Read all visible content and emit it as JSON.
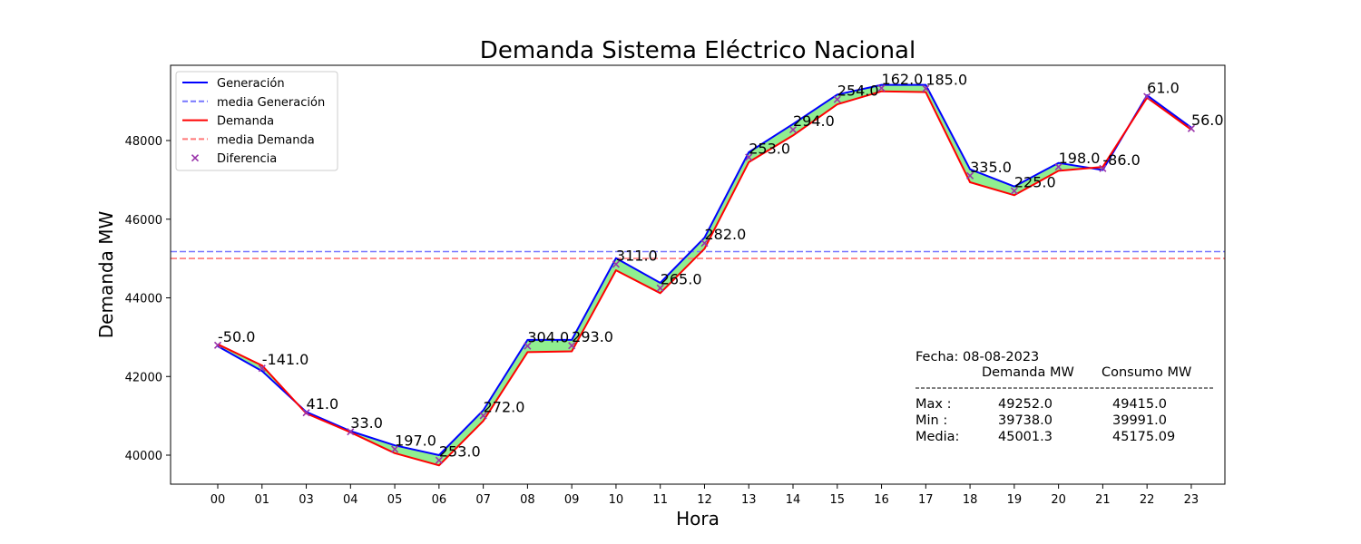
{
  "chart_data": {
    "type": "line",
    "title": "Demanda Sistema Eléctrico Nacional",
    "xlabel": "Hora",
    "ylabel": "Demanda MW",
    "categories": [
      "00",
      "01",
      "03",
      "04",
      "05",
      "06",
      "07",
      "08",
      "09",
      "10",
      "11",
      "12",
      "13",
      "14",
      "15",
      "16",
      "17",
      "18",
      "19",
      "20",
      "21",
      "22",
      "23"
    ],
    "ylim": [
      39300,
      49950
    ],
    "yticks": [
      40000,
      42000,
      44000,
      46000,
      48000
    ],
    "ytick_labels": [
      "40000",
      "42000",
      "44000",
      "46000",
      "48000"
    ],
    "grid": false,
    "legend_position": "top-left",
    "series": [
      {
        "name": "Generación",
        "color": "#0000ff",
        "values": [
          42770,
          42140,
          41100,
          40610,
          40250,
          40000,
          41140,
          42930,
          42930,
          45010,
          44380,
          45530,
          47700,
          48420,
          49170,
          49415,
          49415,
          47270,
          46830,
          47430,
          47250,
          49150,
          48330
        ]
      },
      {
        "name": "Demanda",
        "color": "#ff0000",
        "values": [
          42820,
          42280,
          41060,
          40580,
          40050,
          39740,
          40870,
          42620,
          42640,
          44700,
          44120,
          45250,
          47450,
          48130,
          48920,
          49252,
          49230,
          46940,
          46610,
          47230,
          47330,
          49090,
          48280
        ]
      },
      {
        "name": "Diferencia",
        "color": "#9933aa",
        "values": [
          -50.0,
          -141.0,
          41.0,
          33.0,
          197.0,
          253.0,
          272.0,
          304.0,
          293.0,
          311.0,
          265.0,
          282.0,
          253.0,
          294.0,
          254.0,
          162.0,
          185.0,
          335.0,
          225.0,
          198.0,
          -86.0,
          61.0,
          56.0
        ]
      }
    ],
    "point_labels": [
      "-50.0",
      "-141.0",
      "41.0",
      "33.0",
      "197.0",
      "253.0",
      "272.0",
      "304.0",
      "293.0",
      "311.0",
      "265.0",
      "282.0",
      "253.0",
      "294.0",
      "254.0",
      "162.0",
      "185.0",
      "335.0",
      "225.0",
      "198.0",
      "-86.0",
      "61.0",
      "56.0"
    ],
    "mean_lines": [
      {
        "name": "media Generación",
        "value": 45175.09,
        "color": "#7777ff"
      },
      {
        "name": "media Demanda",
        "value": 45001.3,
        "color": "#ff7777"
      }
    ],
    "fill_color": "#90ee90",
    "legend": [
      "Generación",
      "media Generación",
      "Demanda",
      "media Demanda",
      "Diferencia"
    ],
    "stats": {
      "fecha": "Fecha: 08-08-2023",
      "header_demanda": "Demanda MW",
      "header_consumo": "Consumo MW",
      "separator": "--------------------------------------------------------------",
      "rows": [
        {
          "label": "Max   :",
          "demanda": "49252.0",
          "consumo": "49415.0"
        },
        {
          "label": "Min    :",
          "demanda": "39738.0",
          "consumo": "39991.0"
        },
        {
          "label": "Media:",
          "demanda": "45001.3",
          "consumo": "45175.09"
        }
      ]
    }
  }
}
